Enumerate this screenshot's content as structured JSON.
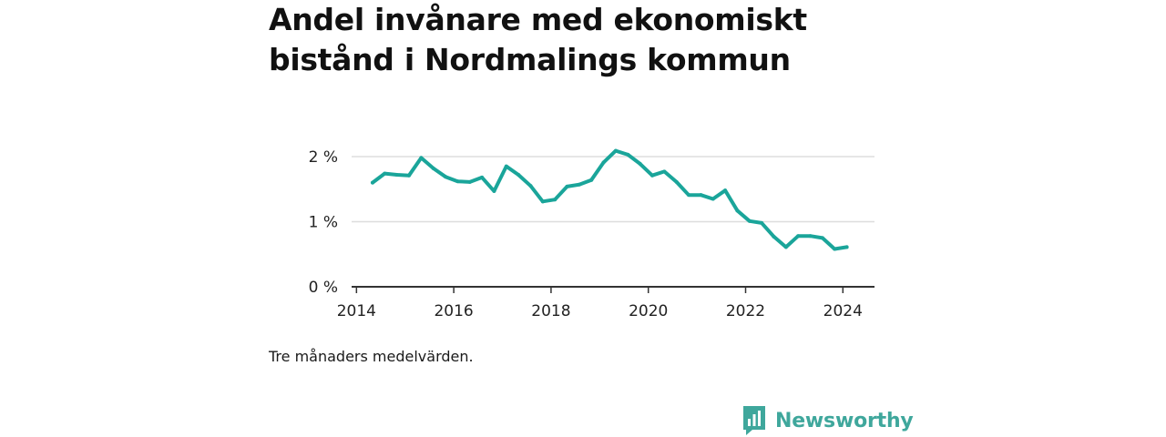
{
  "title": "Andel invånare med ekonomiskt bistånd i Nordmalings kommun",
  "caption": "Tre månaders medelvärden.",
  "brand": {
    "name": "Newsworthy",
    "icon": "newsworthy-logo-icon"
  },
  "colors": {
    "line": "#1aa59a",
    "grid": "#dddddd",
    "axis": "#333333",
    "brand": "#3fa79c"
  },
  "chart_data": {
    "type": "line",
    "title": "Andel invånare med ekonomiskt bistånd i Nordmalings kommun",
    "xlabel": "",
    "ylabel": "",
    "xlim": [
      2013.9,
      2024.65
    ],
    "ylim": [
      0,
      2.0
    ],
    "grid": true,
    "x_ticks": [
      2014,
      2016,
      2018,
      2020,
      2022,
      2024
    ],
    "x_tick_labels": [
      "2014",
      "2016",
      "2018",
      "2020",
      "2022",
      "2024"
    ],
    "y_ticks": [
      0,
      1,
      2
    ],
    "y_tick_labels": [
      "0 %",
      "1 %",
      "2 %"
    ],
    "series": [
      {
        "x": [
          2014.33,
          2014.58,
          2014.83,
          2015.08,
          2015.33,
          2015.58,
          2015.83,
          2016.08,
          2016.33,
          2016.58,
          2016.83,
          2017.08,
          2017.33,
          2017.58,
          2017.83,
          2018.08,
          2018.33,
          2018.58,
          2018.83,
          2019.08,
          2019.33,
          2019.58,
          2019.83,
          2020.08,
          2020.33,
          2020.58,
          2020.83,
          2021.08,
          2021.33,
          2021.58,
          2021.83,
          2022.08,
          2022.33,
          2022.58,
          2022.83,
          2023.08,
          2023.33,
          2023.58,
          2023.83,
          2024.08
        ],
        "values": [
          1.6,
          1.74,
          1.72,
          1.71,
          1.98,
          1.82,
          1.69,
          1.62,
          1.61,
          1.68,
          1.47,
          1.85,
          1.72,
          1.55,
          1.31,
          1.34,
          1.54,
          1.57,
          1.64,
          1.91,
          2.09,
          2.03,
          1.89,
          1.71,
          1.77,
          1.61,
          1.41,
          1.41,
          1.35,
          1.48,
          1.17,
          1.01,
          0.98,
          0.77,
          0.61,
          0.78,
          0.78,
          0.75,
          0.58,
          0.61
        ]
      }
    ]
  }
}
